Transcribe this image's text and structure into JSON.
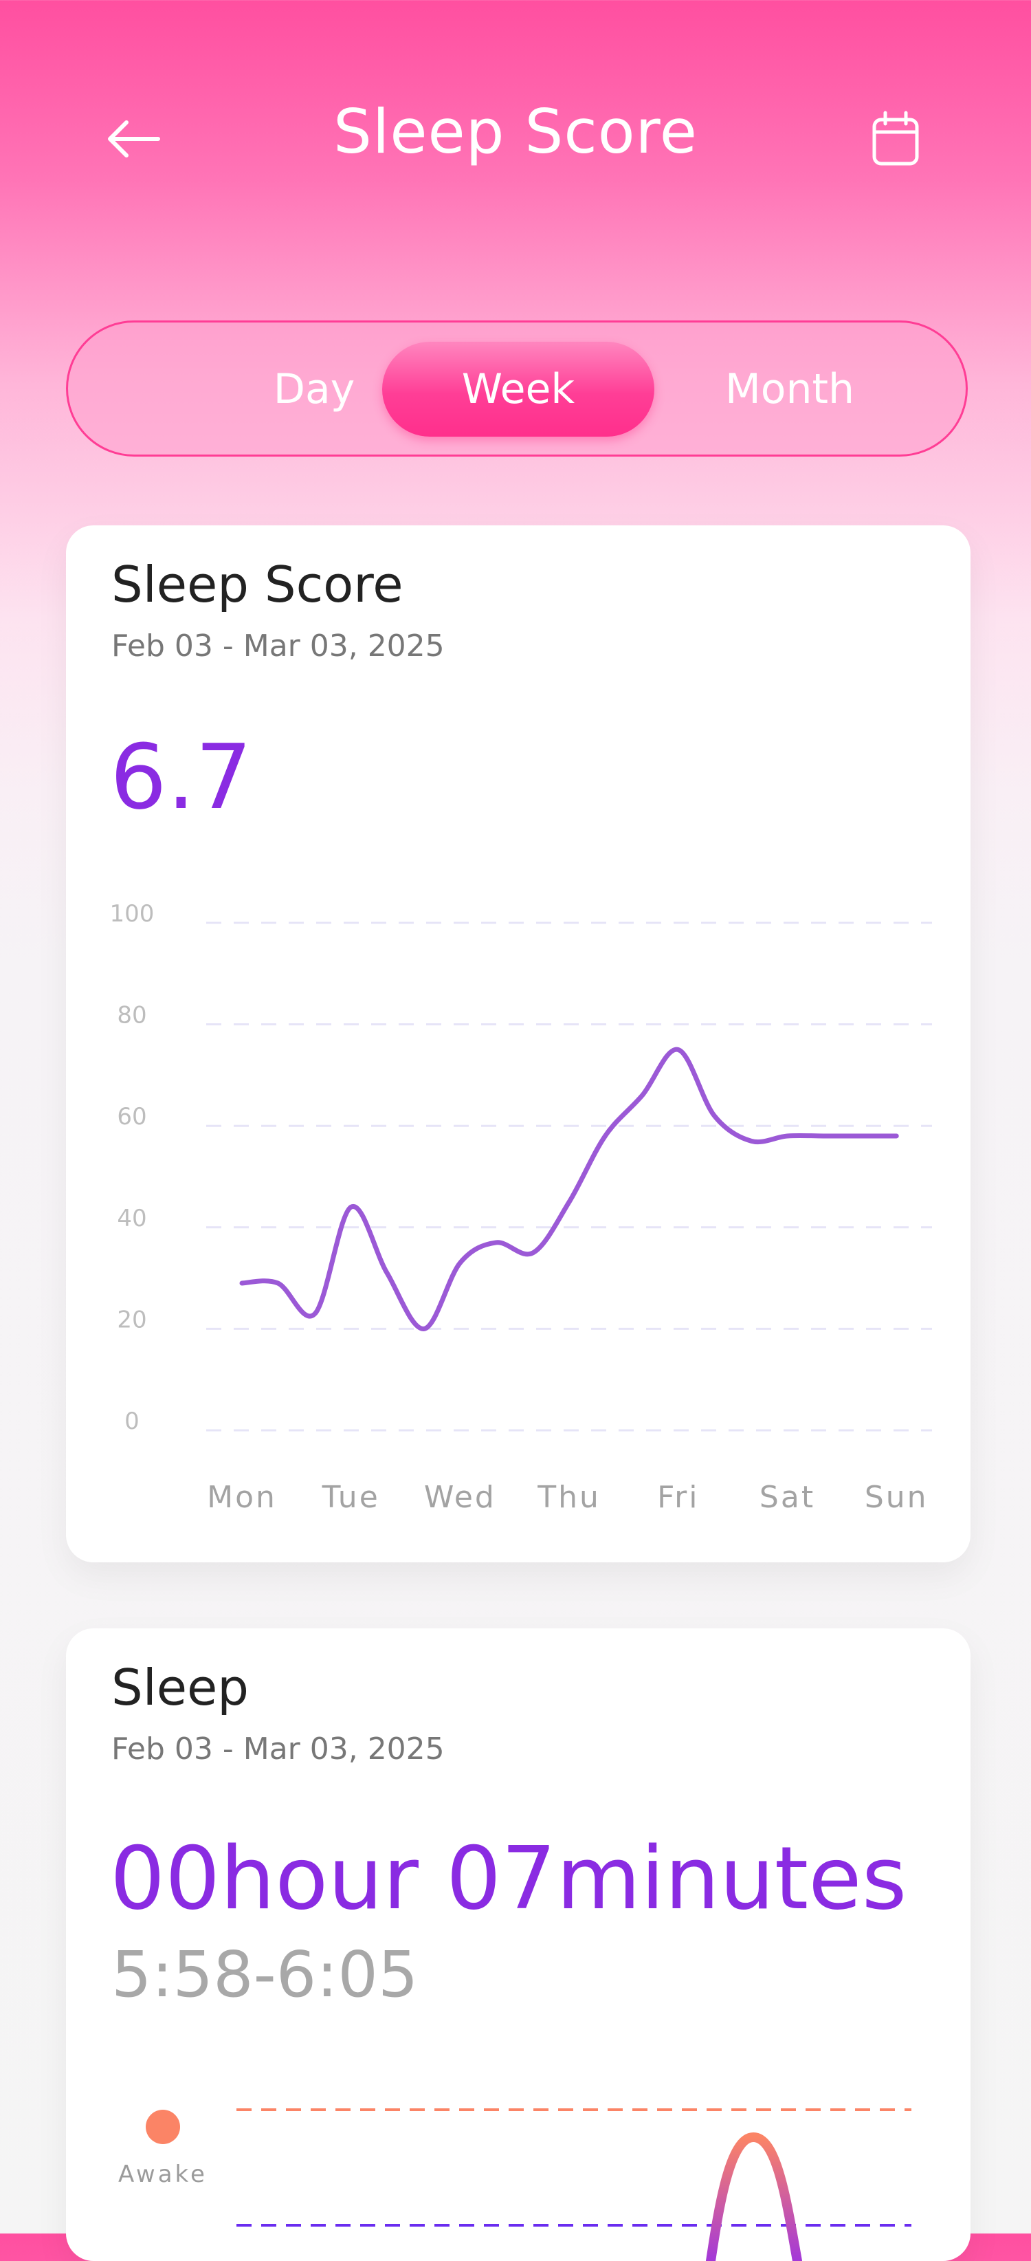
{
  "header": {
    "title": "Sleep Score",
    "back_icon": "arrow-left-icon",
    "calendar_icon": "calendar-icon"
  },
  "tabs": [
    {
      "label": "Day",
      "selected": false
    },
    {
      "label": "Week",
      "selected": true
    },
    {
      "label": "Month",
      "selected": false
    }
  ],
  "score_card": {
    "title": "Sleep Score",
    "date_range": "Feb 03 - Mar 03, 2025",
    "value": "6.7"
  },
  "chart_data": {
    "type": "line",
    "categories": [
      "Mon",
      "Tue",
      "Wed",
      "Thu",
      "Fri",
      "Sat",
      "Sun"
    ],
    "y_ticks": [
      "100",
      "80",
      "60",
      "40",
      "20",
      "0"
    ],
    "ylim": [
      0,
      100
    ],
    "grid": true,
    "line_color": "#9b59d6",
    "x": [
      0.0,
      0.33,
      0.67,
      1.0,
      1.33,
      1.67,
      2.0,
      2.33,
      2.67,
      3.0,
      3.33,
      3.67,
      4.0,
      4.33,
      4.67,
      5.0,
      5.33,
      5.67,
      6.0
    ],
    "values": [
      29,
      29,
      23,
      44,
      31,
      20,
      33,
      37,
      35,
      45,
      58,
      66,
      75,
      62,
      57,
      58,
      58,
      58,
      58
    ]
  },
  "sleep_card": {
    "title": "Sleep",
    "date_range": "Feb 03 - Mar 03, 2025",
    "duration": "00hour 07minutes",
    "time_range": "5:58-6:05",
    "legend_awake": "Awake",
    "awake_color": "#fb8466",
    "deep_color": "#6a2cf0"
  }
}
